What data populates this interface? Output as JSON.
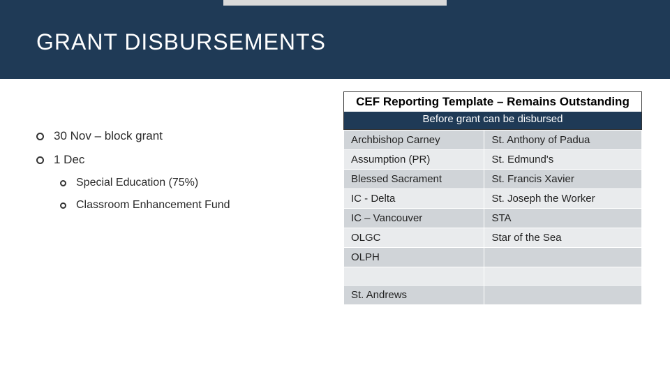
{
  "colors": {
    "navy": "#1f3a56",
    "light_gray_bar": "#d9d9d9",
    "title_bg": "#1f3a56",
    "table_row_a": "#d0d4d8",
    "table_row_b": "#e9ebed",
    "text_dark": "#222222"
  },
  "title": "GRANT DISBURSEMENTS",
  "bullets": {
    "items": [
      {
        "label": "30 Nov – block grant",
        "sub": false
      },
      {
        "label": "1 Dec",
        "sub": false
      },
      {
        "label": "Special Education (75%)",
        "sub": true
      },
      {
        "label": "Classroom Enhancement Fund",
        "sub": true
      }
    ]
  },
  "box": {
    "title": "CEF Reporting Template – Remains Outstanding",
    "subtitle": "Before grant can be disbursed"
  },
  "schools": {
    "rows": [
      [
        "Archbishop Carney",
        "St. Anthony of Padua"
      ],
      [
        "Assumption (PR)",
        "St. Edmund's"
      ],
      [
        "Blessed Sacrament",
        "St. Francis Xavier"
      ],
      [
        "IC - Delta",
        "St. Joseph the Worker"
      ],
      [
        "IC – Vancouver",
        "STA"
      ],
      [
        "OLGC",
        "Star of the Sea"
      ],
      [
        "OLPH",
        ""
      ],
      [
        "",
        ""
      ],
      [
        "St.  Andrews",
        ""
      ]
    ]
  }
}
